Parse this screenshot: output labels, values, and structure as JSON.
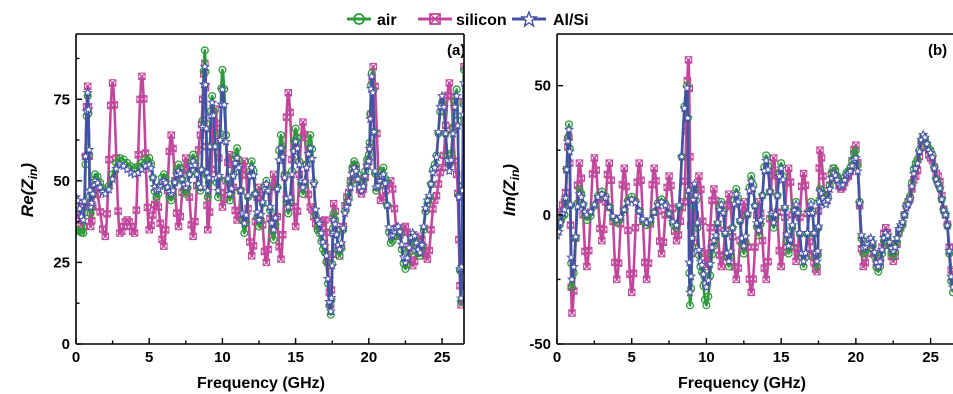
{
  "chart_data": [
    {
      "type": "line",
      "panel_tag": "(a)",
      "xlabel": "Frequency (GHz)",
      "ylabel_main": "Re(",
      "ylabel_var": "Z",
      "ylabel_sub": "in",
      "ylabel_close": ")",
      "xlim": [
        0,
        26.5
      ],
      "ylim": [
        0,
        95
      ],
      "xticks": [
        0,
        5,
        10,
        15,
        20,
        25
      ],
      "yticks": [
        0,
        25,
        50,
        75
      ],
      "series": [
        {
          "name": "air",
          "color": "#2e9b3a",
          "marker": "circle",
          "x": [
            0,
            0.5,
            0.8,
            1.0,
            1.3,
            2.0,
            3.0,
            4.0,
            5.0,
            5.5,
            6.0,
            6.5,
            7.0,
            7.5,
            8.0,
            8.5,
            8.8,
            9.0,
            9.3,
            9.7,
            10.0,
            10.5,
            11.0,
            11.5,
            12.0,
            12.5,
            13.0,
            13.5,
            14.0,
            14.5,
            15.0,
            15.5,
            16.0,
            16.5,
            17.0,
            17.4,
            17.6,
            18.0,
            18.5,
            19.0,
            19.5,
            20.0,
            20.2,
            20.5,
            21.0,
            21.5,
            22.0,
            22.5,
            23.0,
            23.5,
            24.0,
            24.5,
            25.0,
            25.5,
            26.0,
            26.3,
            26.5
          ],
          "y": [
            35,
            34,
            76,
            40,
            52,
            47,
            57,
            54,
            57,
            45,
            52,
            44,
            55,
            46,
            58,
            47,
            90,
            45,
            76,
            45,
            84,
            44,
            60,
            34,
            56,
            36,
            50,
            32,
            64,
            40,
            66,
            46,
            64,
            35,
            28,
            9,
            40,
            27,
            43,
            56,
            48,
            58,
            83,
            47,
            54,
            31,
            35,
            23,
            33,
            27,
            43,
            55,
            74,
            55,
            78,
            13,
            84
          ]
        },
        {
          "name": "silicon",
          "color": "#c2479c",
          "marker": "square-x",
          "x": [
            0,
            0.5,
            0.8,
            1.0,
            1.3,
            2.0,
            2.5,
            3.0,
            3.5,
            4.0,
            4.5,
            5.0,
            5.5,
            6.0,
            6.5,
            7.0,
            7.5,
            8.0,
            8.5,
            8.8,
            9.0,
            9.5,
            10.0,
            10.5,
            11.0,
            11.5,
            12.0,
            12.5,
            13.0,
            13.5,
            14.0,
            14.5,
            15.0,
            15.5,
            16.0,
            16.5,
            17.0,
            17.4,
            17.6,
            18.0,
            18.5,
            19.0,
            19.5,
            20.0,
            20.3,
            20.8,
            21.5,
            22.0,
            22.5,
            23.0,
            23.5,
            24.0,
            24.5,
            25.0,
            25.5,
            26.0,
            26.3,
            26.5
          ],
          "y": [
            40,
            36,
            79,
            36,
            48,
            33,
            80,
            34,
            38,
            34,
            82,
            35,
            44,
            30,
            64,
            36,
            57,
            33,
            64,
            86,
            35,
            72,
            42,
            58,
            38,
            56,
            27,
            48,
            25,
            52,
            26,
            77,
            36,
            68,
            42,
            36,
            38,
            12,
            43,
            27,
            45,
            55,
            46,
            56,
            85,
            44,
            50,
            33,
            36,
            24,
            33,
            26,
            44,
            54,
            80,
            52,
            12,
            85
          ]
        },
        {
          "name": "Al/Si",
          "color": "#4451a6",
          "marker": "star",
          "x": [
            0,
            0.5,
            0.8,
            1.0,
            1.3,
            2.0,
            3.0,
            4.0,
            5.0,
            5.5,
            6.0,
            6.5,
            7.0,
            7.5,
            8.0,
            8.5,
            8.8,
            9.0,
            9.3,
            9.7,
            10.0,
            10.5,
            11.0,
            11.5,
            12.0,
            12.5,
            13.0,
            13.5,
            14.0,
            14.5,
            15.0,
            15.5,
            16.0,
            16.5,
            17.0,
            17.4,
            17.6,
            18.0,
            18.5,
            19.0,
            19.5,
            20.0,
            20.2,
            20.5,
            21.0,
            21.5,
            22.0,
            22.5,
            23.0,
            23.5,
            24.0,
            24.5,
            25.0,
            25.5,
            26.0,
            26.3,
            26.5
          ],
          "y": [
            45,
            38,
            77,
            42,
            50,
            46,
            55,
            52,
            55,
            47,
            50,
            46,
            53,
            48,
            56,
            48,
            85,
            47,
            74,
            47,
            78,
            46,
            57,
            37,
            54,
            38,
            49,
            35,
            60,
            42,
            62,
            48,
            60,
            38,
            30,
            10,
            38,
            29,
            42,
            54,
            47,
            56,
            82,
            48,
            52,
            33,
            36,
            25,
            34,
            28,
            44,
            54,
            76,
            53,
            76,
            14,
            80
          ]
        }
      ]
    },
    {
      "type": "line",
      "panel_tag": "(b)",
      "xlabel": "Frequency (GHz)",
      "ylabel_main": "Im(",
      "ylabel_var": "Z",
      "ylabel_sub": "in",
      "ylabel_close": ")",
      "xlim": [
        0,
        26.5
      ],
      "ylim": [
        -50,
        70
      ],
      "xticks": [
        0,
        5,
        10,
        15,
        20,
        25
      ],
      "yticks": [
        -50,
        0,
        50
      ],
      "series": [
        {
          "name": "air",
          "color": "#2e9b3a",
          "marker": "circle",
          "x": [
            0,
            0.5,
            0.8,
            1.0,
            1.5,
            2.0,
            3.0,
            4.0,
            5.0,
            6.0,
            7.0,
            8.0,
            8.7,
            8.9,
            9.2,
            9.6,
            10.0,
            10.5,
            11.0,
            11.5,
            12.0,
            12.5,
            13.0,
            13.5,
            14.0,
            14.5,
            15.0,
            15.5,
            16.0,
            16.5,
            17.0,
            17.4,
            17.6,
            18.0,
            18.5,
            19.0,
            19.5,
            20.0,
            20.5,
            21.0,
            21.5,
            22.0,
            22.5,
            23.0,
            23.5,
            24.0,
            24.5,
            25.0,
            25.5,
            26.0,
            26.5
          ],
          "y": [
            -5,
            0,
            35,
            -28,
            10,
            -2,
            9,
            -3,
            7,
            -4,
            6,
            -5,
            50,
            -35,
            10,
            -20,
            -35,
            -12,
            5,
            -20,
            10,
            -15,
            15,
            -8,
            23,
            -5,
            20,
            -15,
            5,
            -20,
            5,
            -20,
            10,
            5,
            18,
            12,
            17,
            25,
            -15,
            -10,
            -22,
            -8,
            -16,
            -5,
            5,
            20,
            30,
            25,
            12,
            0,
            -30
          ]
        },
        {
          "name": "silicon",
          "color": "#c2479c",
          "marker": "square-x",
          "x": [
            0,
            0.5,
            0.8,
            1.0,
            1.5,
            2.0,
            2.5,
            3.0,
            3.5,
            4.0,
            4.5,
            5.0,
            5.5,
            6.0,
            6.5,
            7.0,
            7.5,
            8.0,
            8.5,
            8.8,
            9.0,
            9.5,
            10.0,
            10.5,
            11.0,
            11.5,
            12.0,
            12.5,
            13.0,
            13.5,
            14.0,
            14.5,
            15.0,
            15.5,
            16.0,
            16.5,
            17.0,
            17.4,
            17.6,
            18.0,
            18.5,
            19.0,
            19.5,
            20.0,
            20.5,
            21.0,
            21.5,
            22.0,
            22.5,
            23.0,
            23.5,
            24.0,
            24.5,
            25.0,
            25.5,
            26.0,
            26.5
          ],
          "y": [
            -3,
            5,
            30,
            -38,
            20,
            -20,
            22,
            -10,
            20,
            -25,
            18,
            -30,
            20,
            -25,
            18,
            -15,
            15,
            -10,
            5,
            60,
            -15,
            15,
            -20,
            10,
            -20,
            8,
            -25,
            5,
            -30,
            5,
            -25,
            22,
            -20,
            18,
            -18,
            16,
            -15,
            -22,
            25,
            5,
            18,
            10,
            15,
            27,
            -20,
            -10,
            -20,
            -5,
            -18,
            -5,
            5,
            15,
            30,
            22,
            15,
            0,
            -25
          ]
        },
        {
          "name": "Al/Si",
          "color": "#4451a6",
          "marker": "star",
          "x": [
            0,
            0.5,
            0.8,
            1.0,
            1.5,
            2.0,
            3.0,
            4.0,
            5.0,
            6.0,
            7.0,
            8.0,
            8.7,
            8.9,
            9.2,
            9.6,
            10.0,
            10.5,
            11.0,
            11.5,
            12.0,
            12.5,
            13.0,
            13.5,
            14.0,
            14.5,
            15.0,
            15.5,
            16.0,
            16.5,
            17.0,
            17.4,
            17.6,
            18.0,
            18.5,
            19.0,
            19.5,
            20.0,
            20.5,
            21.0,
            21.5,
            22.0,
            22.5,
            23.0,
            23.5,
            24.0,
            24.5,
            25.0,
            25.5,
            26.0,
            26.5
          ],
          "y": [
            -8,
            2,
            33,
            -25,
            8,
            0,
            8,
            -2,
            6,
            -3,
            5,
            -4,
            49,
            -30,
            12,
            -18,
            -28,
            -10,
            4,
            -18,
            8,
            -12,
            13,
            -6,
            21,
            -3,
            18,
            -12,
            4,
            -18,
            4,
            -18,
            9,
            4,
            16,
            11,
            16,
            22,
            -13,
            -9,
            -20,
            -7,
            -14,
            -4,
            4,
            18,
            31,
            24,
            12,
            0,
            -28
          ]
        }
      ]
    }
  ]
}
